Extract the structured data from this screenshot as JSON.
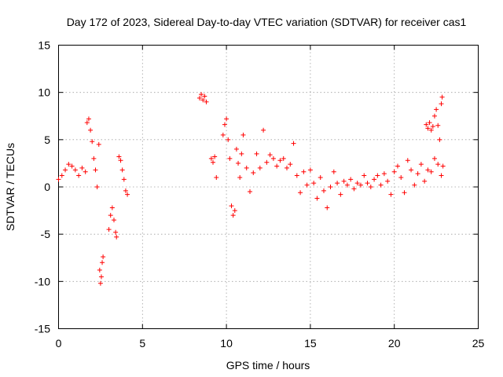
{
  "chart_data": {
    "type": "scatter",
    "title": "Day 172 of 2023, Sidereal Day-to-day VTEC variation (SDTVAR) for receiver cas1",
    "xlabel": "GPS time / hours",
    "ylabel": "SDTVAR / TECUs",
    "xlim": [
      0,
      25
    ],
    "ylim": [
      -15,
      15
    ],
    "xticks": [
      0,
      5,
      10,
      15,
      20,
      25
    ],
    "yticks": [
      -15,
      -10,
      -5,
      0,
      5,
      10,
      15
    ],
    "grid": true,
    "marker": "+",
    "color": "#ff0000",
    "series": [
      {
        "name": "SDTVAR",
        "segments": [
          {
            "x": [
              0.0,
              0.2,
              0.4,
              0.6,
              0.8,
              1.0,
              1.2,
              1.4,
              1.6
            ],
            "y": [
              0.8,
              1.2,
              1.8,
              2.4,
              2.2,
              1.8,
              1.2,
              2.0,
              1.6
            ]
          },
          {
            "x": [
              1.7,
              1.8,
              1.9,
              2.0,
              2.1,
              2.2,
              2.3,
              2.4
            ],
            "y": [
              6.8,
              7.2,
              6.0,
              4.8,
              3.0,
              1.8,
              0.0,
              4.5
            ]
          },
          {
            "x": [
              2.45,
              2.5,
              2.55,
              2.6,
              2.65
            ],
            "y": [
              -8.8,
              -10.2,
              -9.5,
              -8.0,
              -7.4
            ]
          },
          {
            "x": [
              3.0,
              3.1,
              3.2,
              3.3,
              3.4,
              3.45
            ],
            "y": [
              -4.5,
              -3.0,
              -2.2,
              -3.5,
              -4.8,
              -5.3
            ]
          },
          {
            "x": [
              3.6,
              3.7,
              3.8,
              3.9,
              4.0,
              4.1
            ],
            "y": [
              3.2,
              2.8,
              1.8,
              0.8,
              -0.4,
              -0.8
            ]
          },
          {
            "x": [
              8.4,
              8.5,
              8.6,
              8.7,
              8.8
            ],
            "y": [
              9.4,
              9.8,
              9.2,
              9.6,
              9.0
            ]
          },
          {
            "x": [
              9.1,
              9.2,
              9.3,
              9.4
            ],
            "y": [
              3.0,
              2.6,
              3.2,
              1.0
            ]
          },
          {
            "x": [
              9.8,
              9.9,
              10.0,
              10.1,
              10.2,
              10.3,
              10.4,
              10.5,
              10.6,
              10.7,
              10.8,
              10.9,
              11.0,
              11.2,
              11.4,
              11.6,
              11.8,
              12.0,
              12.2
            ],
            "y": [
              5.5,
              6.6,
              7.2,
              5.0,
              3.0,
              -2.0,
              -3.0,
              -2.5,
              4.0,
              2.5,
              1.0,
              3.5,
              5.5,
              2.0,
              -0.5,
              1.5,
              3.5,
              2.0,
              6.0
            ]
          },
          {
            "x": [
              12.4,
              12.6,
              12.8,
              13.0,
              13.2,
              13.4,
              13.6,
              13.8,
              14.0,
              14.2,
              14.4,
              14.6,
              14.8,
              15.0,
              15.2,
              15.4,
              15.6,
              15.8,
              16.0,
              16.2,
              16.4,
              16.6,
              16.8,
              17.0,
              17.2,
              17.4,
              17.6,
              17.8
            ],
            "y": [
              2.6,
              3.4,
              3.0,
              2.2,
              2.8,
              3.0,
              2.0,
              2.4,
              4.6,
              1.2,
              -0.6,
              1.6,
              0.2,
              1.8,
              0.4,
              -1.2,
              1.0,
              -0.4,
              -2.2,
              0.0,
              1.6,
              0.4,
              -0.8,
              0.6,
              0.2,
              0.8,
              -0.2,
              0.4
            ]
          },
          {
            "x": [
              18.0,
              18.2,
              18.4,
              18.6,
              18.8,
              19.0,
              19.2,
              19.4,
              19.6,
              19.8,
              20.0,
              20.2,
              20.4,
              20.6,
              20.8,
              21.0,
              21.2,
              21.4,
              21.6,
              21.8,
              22.0
            ],
            "y": [
              0.2,
              1.2,
              0.4,
              0.0,
              0.8,
              1.2,
              0.2,
              1.4,
              0.6,
              -0.8,
              1.6,
              2.2,
              1.0,
              -0.6,
              2.8,
              1.8,
              0.2,
              1.4,
              2.4,
              0.6,
              1.8
            ]
          },
          {
            "x": [
              21.9,
              22.0,
              22.1,
              22.2,
              22.3
            ],
            "y": [
              6.6,
              6.2,
              6.8,
              6.0,
              6.4
            ]
          },
          {
            "x": [
              22.4,
              22.5,
              22.6,
              22.7,
              22.8,
              22.85
            ],
            "y": [
              7.5,
              8.2,
              6.5,
              5.0,
              8.8,
              9.5
            ]
          },
          {
            "x": [
              22.2,
              22.4,
              22.6,
              22.8,
              22.9
            ],
            "y": [
              1.6,
              3.0,
              2.4,
              1.2,
              2.2
            ]
          }
        ]
      }
    ]
  }
}
